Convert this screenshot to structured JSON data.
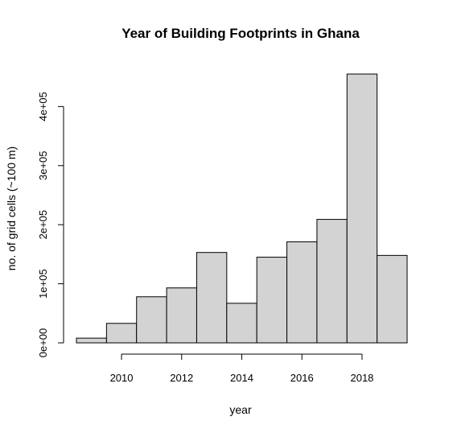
{
  "chart_data": {
    "type": "bar",
    "title": "Year of Building Footprints in Ghana",
    "xlabel": "year",
    "ylabel": "no. of grid cells (~100 m)",
    "bins": [
      {
        "start": 2008.5,
        "end": 2009.5,
        "count": 8000
      },
      {
        "start": 2009.5,
        "end": 2010.5,
        "count": 33000
      },
      {
        "start": 2010.5,
        "end": 2011.5,
        "count": 78000
      },
      {
        "start": 2011.5,
        "end": 2012.5,
        "count": 93000
      },
      {
        "start": 2012.5,
        "end": 2013.5,
        "count": 153000
      },
      {
        "start": 2013.5,
        "end": 2014.5,
        "count": 67000
      },
      {
        "start": 2014.5,
        "end": 2015.5,
        "count": 145000
      },
      {
        "start": 2015.5,
        "end": 2016.5,
        "count": 171000
      },
      {
        "start": 2016.5,
        "end": 2017.5,
        "count": 209000
      },
      {
        "start": 2017.5,
        "end": 2018.5,
        "count": 455000
      },
      {
        "start": 2018.5,
        "end": 2019.5,
        "count": 148000
      }
    ],
    "x_ticks": [
      2010,
      2012,
      2014,
      2016,
      2018
    ],
    "x_tick_labels": [
      "2010",
      "2012",
      "2014",
      "2016",
      "2018"
    ],
    "y_ticks": [
      0,
      100000,
      200000,
      300000,
      400000
    ],
    "y_tick_labels": [
      "0e+00",
      "1e+05",
      "2e+05",
      "3e+05",
      "4e+05"
    ],
    "bar_color": "#d3d3d3",
    "border_color": "#000000",
    "grid": false,
    "legend": "none"
  }
}
